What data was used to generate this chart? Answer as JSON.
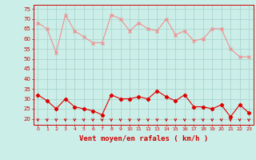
{
  "x": [
    0,
    1,
    2,
    3,
    4,
    5,
    6,
    7,
    8,
    9,
    10,
    11,
    12,
    13,
    14,
    15,
    16,
    17,
    18,
    19,
    20,
    21,
    22,
    23
  ],
  "rafales": [
    68,
    65,
    53,
    72,
    64,
    61,
    58,
    58,
    72,
    70,
    64,
    68,
    65,
    64,
    70,
    62,
    64,
    59,
    60,
    65,
    65,
    55,
    51,
    51
  ],
  "moyen": [
    32,
    29,
    25,
    30,
    26,
    25,
    24,
    22,
    32,
    30,
    30,
    31,
    30,
    34,
    31,
    29,
    32,
    26,
    26,
    25,
    27,
    21,
    27,
    23
  ],
  "bg_color": "#cceee8",
  "grid_color": "#aad4ce",
  "line_color_rafales": "#f09090",
  "line_color_moyen": "#dd0000",
  "marker_rafales": "#f09090",
  "marker_moyen": "#dd0000",
  "arrow_color": "#cc0000",
  "xlabel": "Vent moyen/en rafales ( km/h )",
  "xlabel_color": "#cc0000",
  "yticks": [
    20,
    25,
    30,
    35,
    40,
    45,
    50,
    55,
    60,
    65,
    70,
    75
  ],
  "ylim": [
    17,
    77
  ],
  "xlim": [
    -0.5,
    23.5
  ],
  "tick_color": "#cc0000",
  "spine_color": "#cc0000"
}
